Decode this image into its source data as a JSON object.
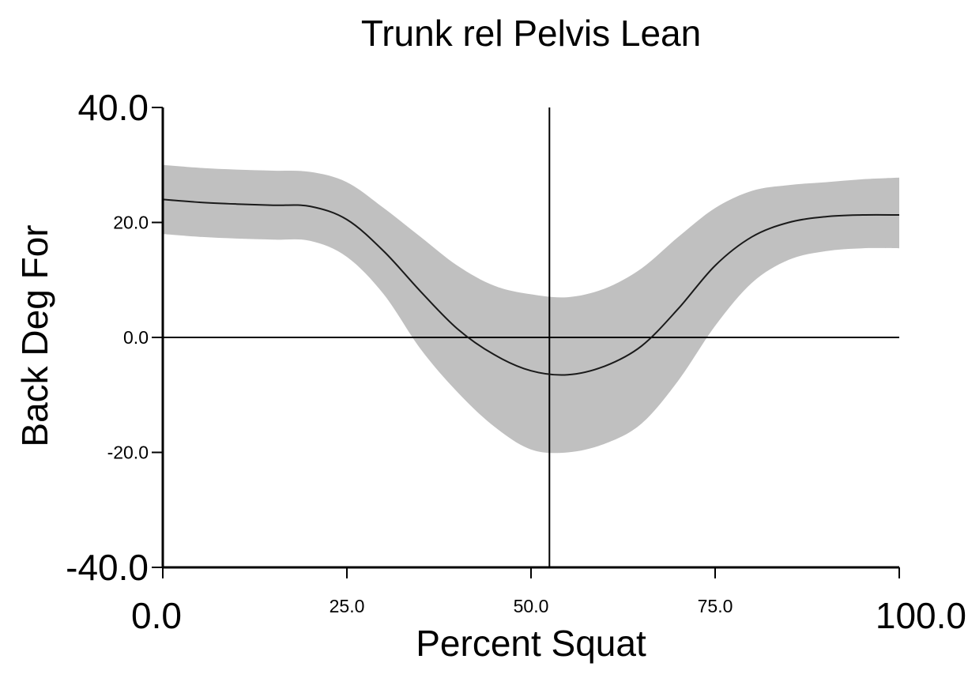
{
  "chart_data": {
    "type": "line",
    "title": "Trunk rel Pelvis Lean",
    "xlabel": "Percent Squat",
    "ylabel": "Back Deg For",
    "xlim": [
      0,
      100
    ],
    "ylim": [
      -40,
      40
    ],
    "x_ticks": [
      "0.0",
      "25.0",
      "50.0",
      "75.0",
      "100.0"
    ],
    "y_ticks": [
      "40.0",
      "20.0",
      "0.0",
      "-20.0",
      "-40.0"
    ],
    "reference_lines": {
      "vertical_x": 52.5,
      "horizontal_y": 0
    },
    "colors": {
      "line": "#1a1a1a",
      "band": "#c0c0c0",
      "axis": "#000000"
    },
    "grid": false,
    "x": [
      0,
      5,
      10,
      15,
      20,
      25,
      30,
      35,
      40,
      45,
      50,
      55,
      60,
      65,
      70,
      75,
      80,
      85,
      90,
      95,
      100
    ],
    "series": [
      {
        "values": [
          24.0,
          23.5,
          23.2,
          23.0,
          22.8,
          20.5,
          15.0,
          8.0,
          1.5,
          -3.0,
          -5.8,
          -6.5,
          -5.0,
          -1.5,
          5.0,
          12.5,
          17.5,
          20.0,
          21.0,
          21.3,
          21.3
        ],
        "upper": [
          30.0,
          29.5,
          29.2,
          29.0,
          28.8,
          27.0,
          22.5,
          17.5,
          12.5,
          9.0,
          7.5,
          7.0,
          8.5,
          12.0,
          17.5,
          22.5,
          25.5,
          26.5,
          27.0,
          27.5,
          27.8
        ],
        "lower": [
          18.0,
          17.5,
          17.2,
          17.0,
          16.8,
          14.0,
          7.5,
          -2.0,
          -9.5,
          -15.5,
          -19.5,
          -20.0,
          -18.5,
          -15.0,
          -7.5,
          2.0,
          9.5,
          13.5,
          15.0,
          15.5,
          15.5
        ]
      }
    ]
  }
}
